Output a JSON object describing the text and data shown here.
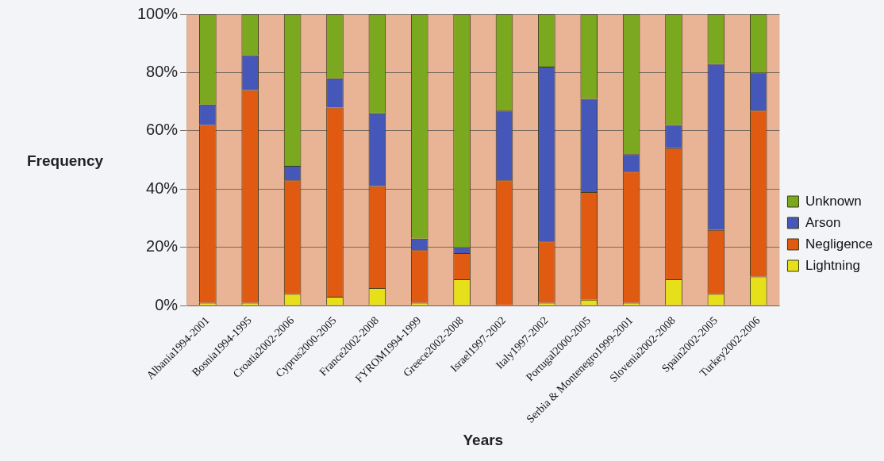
{
  "chart_data": {
    "type": "bar",
    "stacked": true,
    "xlabel": "Years",
    "ylabel": "Frequency",
    "categories": [
      "Albania1994-2001",
      "Bosnia1994-1995",
      "Croatia2002-2006",
      "Cyprus2000-2005",
      "France2002-2008",
      "FYROM1994-1999",
      "Greece2002-2008",
      "Israel1997-2002",
      "Italy1997-2002",
      "Portugal2000-2005",
      "Serbia & Montenegro1999-2001",
      "Slovenia2002-2008",
      "Spain2002-2005",
      "Turkey2002-2006"
    ],
    "series": [
      {
        "name": "Lightning",
        "color": "#e6e01a",
        "values": [
          1,
          1,
          4,
          3,
          6,
          1,
          9,
          0,
          1,
          2,
          1,
          9,
          4,
          10
        ]
      },
      {
        "name": "Negligence",
        "color": "#e05a12",
        "values": [
          61,
          73,
          39,
          65,
          35,
          18,
          9,
          43,
          21,
          37,
          45,
          45,
          22,
          57
        ]
      },
      {
        "name": "Arson",
        "color": "#4557b8",
        "values": [
          7,
          12,
          5,
          10,
          25,
          4,
          2,
          24,
          60,
          32,
          6,
          8,
          57,
          13
        ]
      },
      {
        "name": "Unknown",
        "color": "#7aa81e",
        "values": [
          31,
          14,
          52,
          22,
          34,
          77,
          80,
          33,
          18,
          29,
          48,
          38,
          17,
          20
        ]
      }
    ],
    "ylim": [
      0,
      100
    ],
    "yticks": [
      {
        "value": 0,
        "label": "0%"
      },
      {
        "value": 20,
        "label": "20%"
      },
      {
        "value": 40,
        "label": "40%"
      },
      {
        "value": 60,
        "label": "60%"
      },
      {
        "value": 80,
        "label": "80%"
      },
      {
        "value": 100,
        "label": "100%"
      }
    ],
    "grid": "y",
    "legend": "right"
  }
}
